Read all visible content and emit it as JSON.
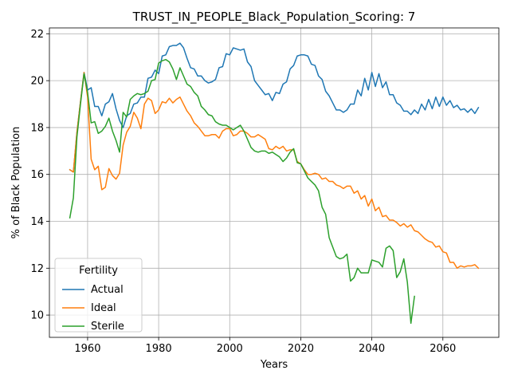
{
  "chart_data": {
    "type": "line",
    "title": "TRUST_IN_PEOPLE_Black_Population_Scoring: 7",
    "xlabel": "Years",
    "ylabel": "% of Black Population",
    "xlim": [
      1949.25,
      2075.75
    ],
    "ylim": [
      9.05,
      22.25
    ],
    "xticks": [
      1960,
      1980,
      2000,
      2020,
      2040,
      2060
    ],
    "yticks": [
      10,
      12,
      14,
      16,
      18,
      20,
      22
    ],
    "grid": true,
    "legend": {
      "title": "Fertility",
      "placement": "lower-left"
    },
    "colors": {
      "Actual": "#1f77b4",
      "Ideal": "#ff7f0e",
      "Sterile": "#2ca02c"
    },
    "series": [
      {
        "name": "Actual",
        "x_start": 1955,
        "values": [
          16.2,
          16.1,
          17.8,
          19.1,
          20.35,
          19.6,
          19.7,
          18.9,
          18.9,
          18.5,
          19.0,
          19.1,
          19.45,
          18.8,
          18.3,
          18.0,
          18.5,
          18.6,
          19.0,
          19.05,
          19.3,
          19.3,
          20.1,
          20.15,
          20.45,
          20.3,
          21.05,
          21.1,
          21.45,
          21.5,
          21.5,
          21.6,
          21.4,
          20.95,
          20.55,
          20.5,
          20.2,
          20.2,
          20.0,
          19.9,
          19.95,
          20.05,
          20.55,
          20.6,
          21.15,
          21.1,
          21.4,
          21.35,
          21.3,
          21.35,
          20.8,
          20.6,
          20.0,
          19.8,
          19.6,
          19.4,
          19.45,
          19.15,
          19.5,
          19.45,
          19.85,
          19.95,
          20.5,
          20.65,
          21.05,
          21.1,
          21.1,
          21.05,
          20.7,
          20.65,
          20.2,
          20.05,
          19.55,
          19.35,
          19.05,
          18.75,
          18.75,
          18.65,
          18.75,
          19.0,
          19.0,
          19.6,
          19.35,
          20.1,
          19.6,
          20.35,
          19.75,
          20.3,
          19.7,
          19.95,
          19.4,
          19.4,
          19.05,
          18.95,
          18.7,
          18.7,
          18.55,
          18.75,
          18.6,
          19.0,
          18.75,
          19.2,
          18.8,
          19.3,
          18.9,
          19.3,
          18.95,
          19.15,
          18.85,
          18.95,
          18.75,
          18.8,
          18.65,
          18.8,
          18.6,
          18.85
        ]
      },
      {
        "name": "Ideal",
        "x_start": 1955,
        "values": [
          16.2,
          16.1,
          17.8,
          19.1,
          20.35,
          19.3,
          16.65,
          16.2,
          16.35,
          15.35,
          15.45,
          16.25,
          15.95,
          15.8,
          16.05,
          17.25,
          17.8,
          18.05,
          18.65,
          18.4,
          17.95,
          19.0,
          19.25,
          19.15,
          18.6,
          18.75,
          19.1,
          19.05,
          19.25,
          19.05,
          19.2,
          19.3,
          19.0,
          18.7,
          18.5,
          18.2,
          18.05,
          17.85,
          17.65,
          17.65,
          17.7,
          17.7,
          17.55,
          17.85,
          17.95,
          17.95,
          17.65,
          17.7,
          17.85,
          17.85,
          17.75,
          17.6,
          17.6,
          17.7,
          17.6,
          17.5,
          17.1,
          17.05,
          17.2,
          17.1,
          17.2,
          17.0,
          17.05,
          17.05,
          16.55,
          16.45,
          16.2,
          16.0,
          16.0,
          16.05,
          16.0,
          15.8,
          15.85,
          15.7,
          15.7,
          15.55,
          15.5,
          15.4,
          15.5,
          15.5,
          15.2,
          15.3,
          14.95,
          15.1,
          14.65,
          14.95,
          14.45,
          14.6,
          14.2,
          14.25,
          14.05,
          14.05,
          13.95,
          13.8,
          13.9,
          13.75,
          13.85,
          13.6,
          13.55,
          13.4,
          13.25,
          13.15,
          13.1,
          12.9,
          12.95,
          12.7,
          12.65,
          12.25,
          12.25,
          12.0,
          12.1,
          12.05,
          12.1,
          12.1,
          12.15,
          12.0
        ]
      },
      {
        "name": "Sterile",
        "x_start": 1955,
        "values": [
          14.15,
          15.0,
          17.6,
          19.0,
          20.3,
          19.5,
          18.2,
          18.25,
          17.75,
          17.85,
          18.05,
          18.4,
          17.85,
          17.45,
          16.95,
          18.65,
          18.45,
          19.2,
          19.35,
          19.45,
          19.4,
          19.45,
          19.55,
          20.0,
          20.05,
          20.75,
          20.85,
          20.9,
          20.8,
          20.5,
          20.05,
          20.55,
          20.2,
          19.85,
          19.75,
          19.5,
          19.35,
          18.9,
          18.75,
          18.55,
          18.5,
          18.25,
          18.15,
          18.1,
          18.1,
          18.0,
          17.9,
          18.0,
          18.1,
          17.85,
          17.5,
          17.15,
          17.0,
          16.95,
          17.0,
          17.0,
          16.9,
          16.95,
          16.85,
          16.75,
          16.55,
          16.7,
          16.95,
          17.1,
          16.5,
          16.45,
          16.15,
          15.85,
          15.7,
          15.55,
          15.3,
          14.6,
          14.3,
          13.3,
          12.9,
          12.5,
          12.4,
          12.45,
          12.6,
          11.45,
          11.6,
          12.0,
          11.8,
          11.8,
          11.8,
          12.35,
          12.3,
          12.25,
          12.05,
          12.85,
          12.95,
          12.75,
          11.6,
          11.85,
          12.4,
          11.4,
          9.65,
          10.8
        ]
      }
    ]
  }
}
